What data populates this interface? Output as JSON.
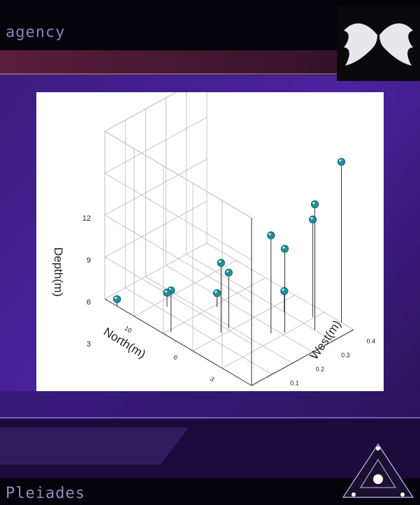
{
  "header": {
    "title": "agency"
  },
  "footer": {
    "label": "Pleiades"
  },
  "theme": {
    "background": "#2a1458",
    "accent": "#5a2bb0",
    "marker": "#1f8f9a",
    "card": "#ffffff"
  },
  "icons": {
    "top_right": "angel-wings-icon",
    "bottom_right": "pyramid-constellation-icon"
  },
  "chart_data": {
    "type": "scatter",
    "subtype": "3d-scatter-with-drop-lines",
    "zlabel": "Depth(m)",
    "ylabel": "North(m)",
    "xlabel": "West(m)",
    "zlim": [
      0,
      12
    ],
    "zticks": [
      "3",
      "6",
      "9",
      "12"
    ],
    "north_ticks": [
      "10",
      "6",
      "3"
    ],
    "west_ticks": [
      "0.1",
      "0.2",
      "0.3",
      "0.4"
    ],
    "grid": true,
    "points": [
      {
        "west": 0.0,
        "north": 11,
        "depth": 0.5
      },
      {
        "west": 0.02,
        "north": 7,
        "depth": 3
      },
      {
        "west": 0.1,
        "north": 9,
        "depth": 1
      },
      {
        "west": 0.12,
        "north": 5,
        "depth": 5
      },
      {
        "west": 0.15,
        "north": 5,
        "depth": 4
      },
      {
        "west": 0.2,
        "north": 7,
        "depth": 1
      },
      {
        "west": 0.22,
        "north": 3,
        "depth": 7
      },
      {
        "west": 0.25,
        "north": 2.5,
        "depth": 6
      },
      {
        "west": 0.32,
        "north": 4,
        "depth": 1.5
      },
      {
        "west": 0.32,
        "north": 1.5,
        "depth": 9
      },
      {
        "west": 0.36,
        "north": 2.5,
        "depth": 7
      },
      {
        "west": 0.4,
        "north": 1,
        "depth": 11.5
      }
    ]
  }
}
